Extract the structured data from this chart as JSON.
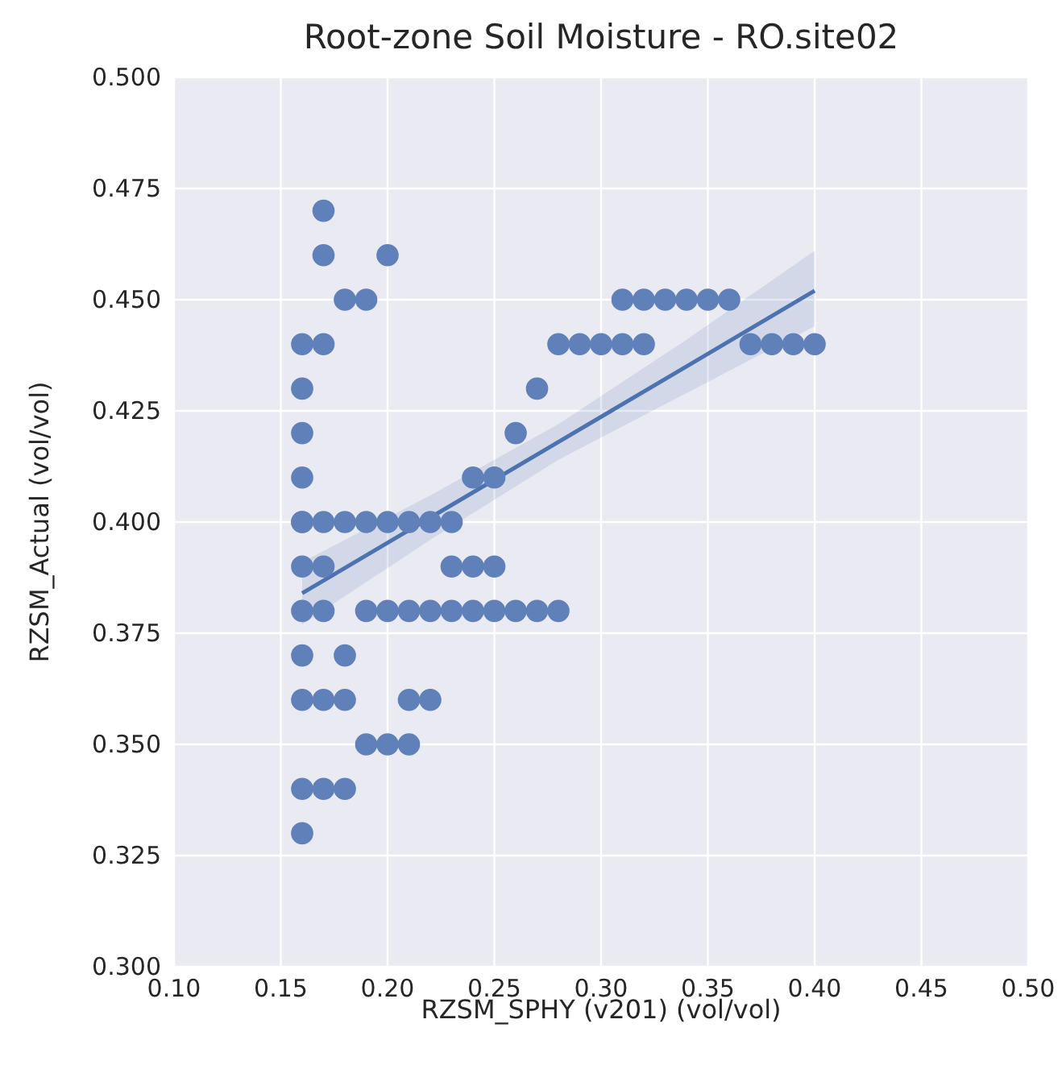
{
  "chart_data": {
    "type": "scatter",
    "title": "Root-zone Soil Moisture - RO.site02",
    "xlabel": "RZSM_SPHY (v201) (vol/vol)",
    "ylabel": "RZSM_Actual (vol/vol)",
    "xlim": [
      0.1,
      0.5
    ],
    "ylim": [
      0.3,
      0.5
    ],
    "xticks": [
      {
        "value": 0.1,
        "label": "0.10"
      },
      {
        "value": 0.15,
        "label": "0.15"
      },
      {
        "value": 0.2,
        "label": "0.20"
      },
      {
        "value": 0.25,
        "label": "0.25"
      },
      {
        "value": 0.3,
        "label": "0.30"
      },
      {
        "value": 0.35,
        "label": "0.35"
      },
      {
        "value": 0.4,
        "label": "0.40"
      },
      {
        "value": 0.45,
        "label": "0.45"
      },
      {
        "value": 0.5,
        "label": "0.50"
      }
    ],
    "yticks": [
      {
        "value": 0.3,
        "label": "0.300"
      },
      {
        "value": 0.325,
        "label": "0.325"
      },
      {
        "value": 0.35,
        "label": "0.350"
      },
      {
        "value": 0.375,
        "label": "0.375"
      },
      {
        "value": 0.4,
        "label": "0.400"
      },
      {
        "value": 0.425,
        "label": "0.425"
      },
      {
        "value": 0.45,
        "label": "0.450"
      },
      {
        "value": 0.475,
        "label": "0.475"
      },
      {
        "value": 0.5,
        "label": "0.500"
      }
    ],
    "grid": true,
    "series": [
      {
        "marker": "circle",
        "color": "#5f80b9",
        "x": [
          0.17,
          0.17,
          0.2,
          0.18,
          0.19,
          0.31,
          0.32,
          0.33,
          0.34,
          0.35,
          0.36,
          0.16,
          0.17,
          0.28,
          0.29,
          0.3,
          0.31,
          0.32,
          0.37,
          0.38,
          0.39,
          0.4,
          0.16,
          0.27,
          0.16,
          0.26,
          0.16,
          0.24,
          0.25,
          0.16,
          0.16,
          0.17,
          0.18,
          0.19,
          0.2,
          0.21,
          0.22,
          0.23,
          0.16,
          0.17,
          0.23,
          0.24,
          0.25,
          0.16,
          0.17,
          0.19,
          0.2,
          0.21,
          0.22,
          0.23,
          0.24,
          0.25,
          0.26,
          0.27,
          0.28,
          0.16,
          0.18,
          0.16,
          0.17,
          0.18,
          0.21,
          0.22,
          0.19,
          0.2,
          0.21,
          0.16,
          0.17,
          0.18,
          0.16
        ],
        "values": [
          0.47,
          0.46,
          0.46,
          0.45,
          0.45,
          0.45,
          0.45,
          0.45,
          0.45,
          0.45,
          0.45,
          0.44,
          0.44,
          0.44,
          0.44,
          0.44,
          0.44,
          0.44,
          0.44,
          0.44,
          0.44,
          0.44,
          0.43,
          0.43,
          0.42,
          0.42,
          0.41,
          0.41,
          0.41,
          0.4,
          0.4,
          0.4,
          0.4,
          0.4,
          0.4,
          0.4,
          0.4,
          0.4,
          0.39,
          0.39,
          0.39,
          0.39,
          0.39,
          0.38,
          0.38,
          0.38,
          0.38,
          0.38,
          0.38,
          0.38,
          0.38,
          0.38,
          0.38,
          0.38,
          0.38,
          0.37,
          0.37,
          0.36,
          0.36,
          0.36,
          0.36,
          0.36,
          0.35,
          0.35,
          0.35,
          0.34,
          0.34,
          0.34,
          0.33
        ]
      },
      {
        "type": "line",
        "color": "#4c72b0",
        "x": [
          0.16,
          0.22,
          0.28,
          0.34,
          0.4
        ],
        "values": [
          0.384,
          0.401,
          0.418,
          0.435,
          0.452
        ],
        "lower": [
          0.377,
          0.396,
          0.414,
          0.429,
          0.444
        ],
        "upper": [
          0.391,
          0.406,
          0.422,
          0.441,
          0.461
        ]
      }
    ]
  }
}
